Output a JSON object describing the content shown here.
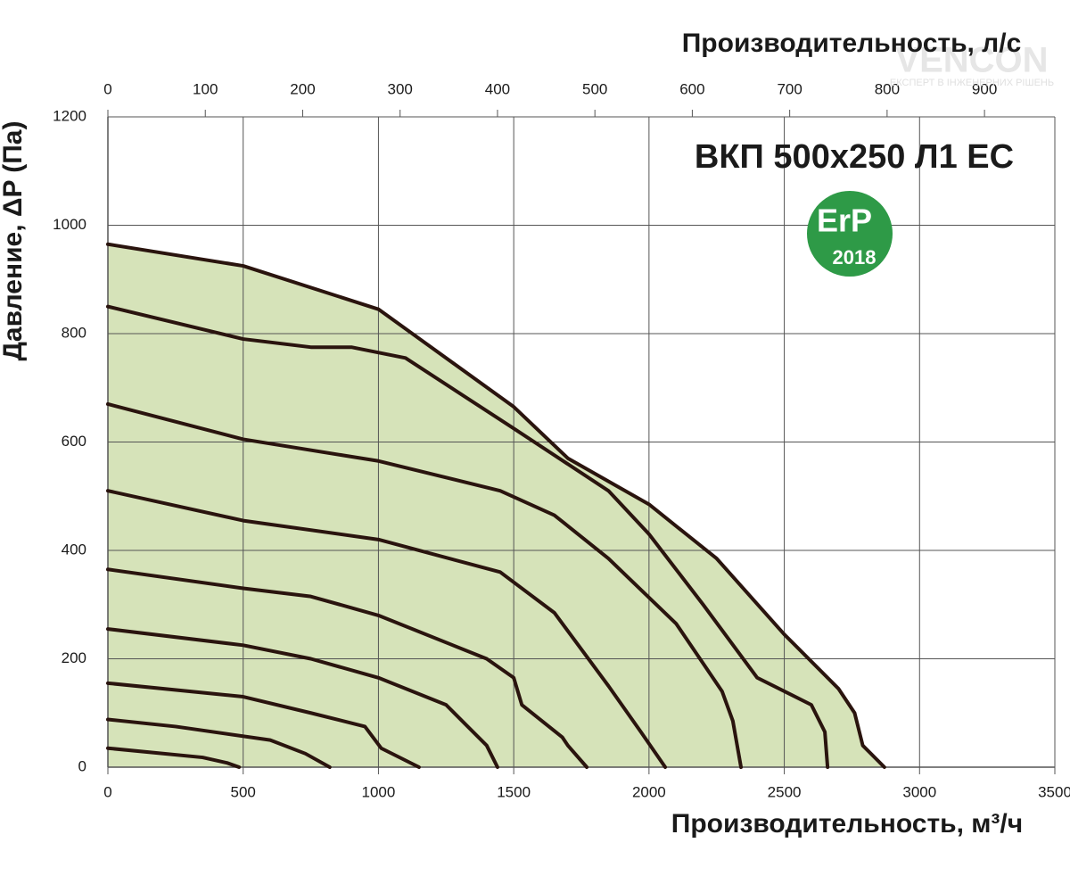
{
  "chart_data": {
    "type": "line",
    "title": "ВКП 500x250 Л1 EC",
    "x_label": "Производительность, м³/ч",
    "x2_label": "Производительность, л/с",
    "y_label": "Давление, ΔP (Па)",
    "badge": {
      "text": "ErP",
      "year": "2018",
      "color": "#2e9a47"
    },
    "watermark": {
      "brand": "VENCON",
      "tagline": "ЕКСПЕРТ В ІНЖЕНЕРНИХ РІШЕНЬ"
    },
    "xlim": [
      0,
      3500
    ],
    "xticks": [
      0,
      500,
      1000,
      1500,
      2000,
      2500,
      3000,
      3500
    ],
    "x2lim": [
      0,
      972.22
    ],
    "x2ticks": [
      0,
      100,
      200,
      300,
      400,
      500,
      600,
      700,
      800,
      900
    ],
    "ylim": [
      0,
      1200
    ],
    "yticks": [
      0,
      200,
      400,
      600,
      800,
      1000,
      1200
    ],
    "grid": true,
    "area_fill": "#d6e3b9",
    "series": [
      {
        "color": "#2a140e",
        "x": [
          0,
          500,
          1000,
          1500,
          1700,
          2000,
          2250,
          2500,
          2700,
          2760,
          2790,
          2870
        ],
        "values": [
          965,
          925,
          845,
          665,
          570,
          485,
          385,
          245,
          145,
          100,
          40,
          0
        ]
      },
      {
        "color": "#2a140e",
        "x": [
          0,
          500,
          750,
          900,
          1100,
          1500,
          1850,
          2000,
          2200,
          2400,
          2600,
          2650,
          2660
        ],
        "values": [
          850,
          790,
          775,
          775,
          755,
          625,
          510,
          430,
          300,
          165,
          115,
          65,
          0
        ]
      },
      {
        "color": "#2a140e",
        "x": [
          0,
          500,
          1000,
          1450,
          1650,
          1850,
          2100,
          2270,
          2310,
          2340
        ],
        "values": [
          670,
          605,
          565,
          510,
          465,
          385,
          265,
          140,
          85,
          0
        ]
      },
      {
        "color": "#2a140e",
        "x": [
          0,
          500,
          1000,
          1450,
          1650,
          1850,
          1970,
          2060
        ],
        "values": [
          510,
          455,
          420,
          360,
          285,
          150,
          65,
          0
        ]
      },
      {
        "color": "#2a140e",
        "x": [
          0,
          500,
          750,
          1000,
          1400,
          1500,
          1530,
          1680,
          1700,
          1770
        ],
        "values": [
          365,
          330,
          315,
          280,
          200,
          165,
          115,
          55,
          40,
          0
        ]
      },
      {
        "color": "#2a140e",
        "x": [
          0,
          500,
          750,
          1000,
          1250,
          1320,
          1400,
          1440
        ],
        "values": [
          255,
          225,
          200,
          165,
          115,
          80,
          40,
          0
        ]
      },
      {
        "color": "#2a140e",
        "x": [
          0,
          500,
          750,
          950,
          1010,
          1150
        ],
        "values": [
          155,
          130,
          100,
          75,
          35,
          0
        ]
      },
      {
        "color": "#2a140e",
        "x": [
          0,
          250,
          600,
          730,
          820
        ],
        "values": [
          88,
          75,
          50,
          25,
          0
        ]
      },
      {
        "color": "#2a140e",
        "x": [
          0,
          350,
          440,
          485
        ],
        "values": [
          35,
          18,
          8,
          0
        ]
      }
    ]
  }
}
